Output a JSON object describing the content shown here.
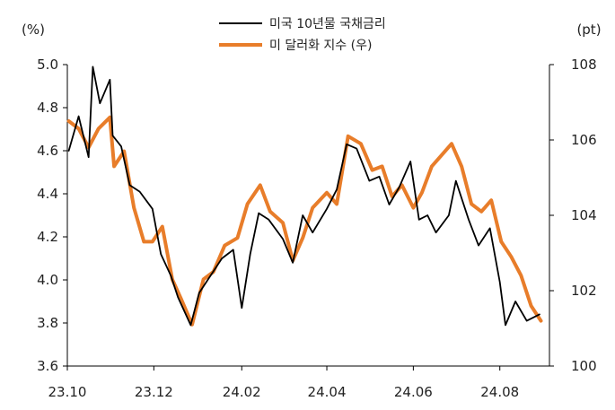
{
  "chart_data": {
    "type": "line",
    "left_unit": "(%)",
    "right_unit": "(pt)",
    "left_ylim": [
      3.6,
      5.0
    ],
    "right_ylim": [
      100,
      108
    ],
    "left_ticks": [
      "5.0",
      "4.8",
      "4.6",
      "4.4",
      "4.2",
      "4.0",
      "3.8",
      "3.6"
    ],
    "right_ticks": [
      "108",
      "106",
      "104",
      "102",
      "100"
    ],
    "x_ticks": [
      "23.10",
      "23.12",
      "24.02",
      "24.04",
      "24.06",
      "24.08"
    ],
    "grid": false,
    "legend_position": "top-center",
    "series": [
      {
        "name": "미국 10년물 국채금리",
        "axis": "left",
        "color": "#000000",
        "x": [
          "23.10.02",
          "23.10.09",
          "23.10.16",
          "23.10.19",
          "23.10.24",
          "23.10.31",
          "23.11.02",
          "23.11.08",
          "23.11.14",
          "23.11.21",
          "23.11.30",
          "23.12.06",
          "23.12.13",
          "23.12.18",
          "23.12.27",
          "24.01.02",
          "24.01.10",
          "24.01.18",
          "24.01.26",
          "24.02.01",
          "24.02.07",
          "24.02.13",
          "24.02.20",
          "24.03.01",
          "24.03.08",
          "24.03.15",
          "24.03.22",
          "24.04.01",
          "24.04.08",
          "24.04.15",
          "24.04.22",
          "24.05.01",
          "24.05.08",
          "24.05.15",
          "24.05.22",
          "24.05.30",
          "24.06.05",
          "24.06.11",
          "24.06.17",
          "24.06.26",
          "24.07.01",
          "24.07.10",
          "24.07.17",
          "24.07.25",
          "24.08.01",
          "24.08.05",
          "24.08.12",
          "24.08.20",
          "24.08.29"
        ],
        "values": [
          4.6,
          4.76,
          4.57,
          4.99,
          4.82,
          4.93,
          4.67,
          4.62,
          4.44,
          4.41,
          4.33,
          4.12,
          4.02,
          3.92,
          3.79,
          3.94,
          4.02,
          4.1,
          4.14,
          3.87,
          4.12,
          4.31,
          4.28,
          4.19,
          4.08,
          4.3,
          4.22,
          4.33,
          4.42,
          4.63,
          4.61,
          4.46,
          4.48,
          4.35,
          4.43,
          4.55,
          4.28,
          4.3,
          4.22,
          4.3,
          4.46,
          4.28,
          4.16,
          4.24,
          3.99,
          3.79,
          3.9,
          3.81,
          3.84
        ]
      },
      {
        "name": "미 달러화 지수 (우)",
        "axis": "right",
        "color": "#E87D2A",
        "x": [
          "23.10.02",
          "23.10.09",
          "23.10.16",
          "23.10.23",
          "23.10.31",
          "23.11.03",
          "23.11.10",
          "23.11.17",
          "23.11.24",
          "23.11.30",
          "23.12.07",
          "23.12.14",
          "23.12.20",
          "23.12.28",
          "24.01.05",
          "24.01.12",
          "24.01.20",
          "24.01.29",
          "24.02.05",
          "24.02.14",
          "24.02.21",
          "24.03.01",
          "24.03.08",
          "24.03.15",
          "24.03.22",
          "24.04.01",
          "24.04.08",
          "24.04.16",
          "24.04.25",
          "24.05.03",
          "24.05.10",
          "24.05.17",
          "24.05.24",
          "24.06.01",
          "24.06.07",
          "24.06.14",
          "24.06.21",
          "24.06.28",
          "24.07.05",
          "24.07.12",
          "24.07.19",
          "24.07.26",
          "24.08.02",
          "24.08.09",
          "24.08.16",
          "24.08.23",
          "24.08.30"
        ],
        "values": [
          106.5,
          106.3,
          105.8,
          106.3,
          106.6,
          105.3,
          105.7,
          104.2,
          103.3,
          103.3,
          103.7,
          102.3,
          101.8,
          101.1,
          102.3,
          102.5,
          103.2,
          103.4,
          104.3,
          104.8,
          104.1,
          103.8,
          102.8,
          103.4,
          104.2,
          104.6,
          104.3,
          106.1,
          105.9,
          105.2,
          105.3,
          104.5,
          104.8,
          104.2,
          104.6,
          105.3,
          105.6,
          105.9,
          105.3,
          104.3,
          104.1,
          104.4,
          103.3,
          102.9,
          102.4,
          101.6,
          101.2
        ]
      }
    ]
  }
}
